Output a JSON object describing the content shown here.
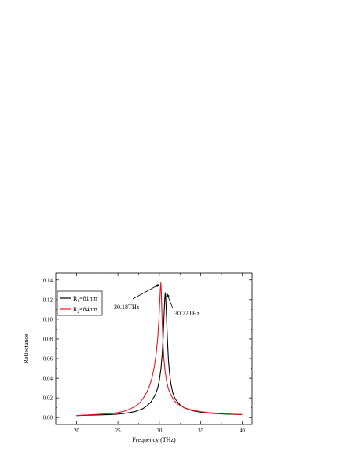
{
  "chart_data": {
    "type": "line",
    "xlabel": "Frequency (THz)",
    "ylabel": "Reflectance",
    "xlim": [
      17.5,
      41.2
    ],
    "ylim": [
      -0.007,
      0.147
    ],
    "xticks": [
      20,
      25,
      30,
      35,
      40
    ],
    "yticks": [
      0.0,
      0.02,
      0.04,
      0.06,
      0.08,
      0.1,
      0.12,
      0.14
    ],
    "xtick_labels": [
      "20",
      "25",
      "30",
      "35",
      "40"
    ],
    "ytick_labels": [
      "0.00",
      "0.02",
      "0.04",
      "0.06",
      "0.08",
      "0.10",
      "0.12",
      "0.14"
    ],
    "grid": false,
    "legend_position": "top-left",
    "series": [
      {
        "name_main": "R",
        "name_sub": "1",
        "name_rest": "=81nm",
        "color": "#000000",
        "peak_x": 30.72,
        "peak_y": 0.127,
        "points": [
          [
            20,
            0.002
          ],
          [
            22,
            0.0025
          ],
          [
            24,
            0.003
          ],
          [
            25,
            0.0035
          ],
          [
            26,
            0.0045
          ],
          [
            27,
            0.006
          ],
          [
            28,
            0.009
          ],
          [
            28.5,
            0.012
          ],
          [
            29,
            0.016
          ],
          [
            29.5,
            0.023
          ],
          [
            29.8,
            0.03
          ],
          [
            30.0,
            0.038
          ],
          [
            30.2,
            0.05
          ],
          [
            30.35,
            0.065
          ],
          [
            30.45,
            0.08
          ],
          [
            30.55,
            0.1
          ],
          [
            30.62,
            0.115
          ],
          [
            30.68,
            0.124
          ],
          [
            30.72,
            0.127
          ],
          [
            30.76,
            0.124
          ],
          [
            30.82,
            0.112
          ],
          [
            30.9,
            0.095
          ],
          [
            31.0,
            0.075
          ],
          [
            31.1,
            0.058
          ],
          [
            31.25,
            0.044
          ],
          [
            31.4,
            0.034
          ],
          [
            31.6,
            0.026
          ],
          [
            31.8,
            0.021
          ],
          [
            32.0,
            0.018
          ],
          [
            32.5,
            0.013
          ],
          [
            33,
            0.01
          ],
          [
            34,
            0.007
          ],
          [
            35,
            0.0055
          ],
          [
            36,
            0.0045
          ],
          [
            38,
            0.0035
          ],
          [
            40,
            0.003
          ]
        ]
      },
      {
        "name_main": "R",
        "name_sub": "2",
        "name_rest": "=84nm",
        "color": "#e8141b",
        "peak_x": 30.18,
        "peak_y": 0.137,
        "points": [
          [
            20,
            0.002
          ],
          [
            22,
            0.003
          ],
          [
            24,
            0.004
          ],
          [
            25,
            0.005
          ],
          [
            26,
            0.007
          ],
          [
            27,
            0.011
          ],
          [
            27.5,
            0.014
          ],
          [
            28,
            0.019
          ],
          [
            28.5,
            0.026
          ],
          [
            28.8,
            0.032
          ],
          [
            29.1,
            0.04
          ],
          [
            29.4,
            0.052
          ],
          [
            29.6,
            0.064
          ],
          [
            29.8,
            0.08
          ],
          [
            29.95,
            0.1
          ],
          [
            30.05,
            0.118
          ],
          [
            30.12,
            0.13
          ],
          [
            30.18,
            0.137
          ],
          [
            30.22,
            0.132
          ],
          [
            30.28,
            0.115
          ],
          [
            30.35,
            0.095
          ],
          [
            30.45,
            0.075
          ],
          [
            30.55,
            0.06
          ],
          [
            30.7,
            0.047
          ],
          [
            30.9,
            0.036
          ],
          [
            31.1,
            0.029
          ],
          [
            31.4,
            0.023
          ],
          [
            31.8,
            0.017
          ],
          [
            32.2,
            0.014
          ],
          [
            33,
            0.01
          ],
          [
            34,
            0.0075
          ],
          [
            35,
            0.006
          ],
          [
            36,
            0.005
          ],
          [
            38,
            0.0038
          ],
          [
            40,
            0.003
          ]
        ]
      }
    ],
    "annotations": [
      {
        "text": "30.18THz"
      },
      {
        "text": "30.72THz"
      }
    ]
  }
}
